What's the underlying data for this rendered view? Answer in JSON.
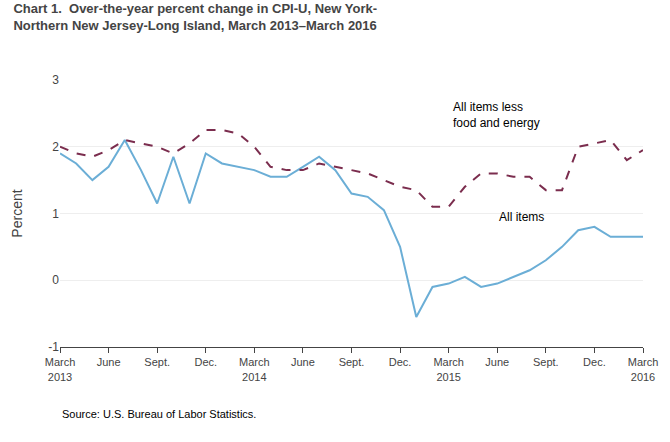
{
  "chart_data": {
    "type": "line",
    "title": "Chart 1.  Over-the-year percent change in CPI-U, New York-\nNorthern New Jersey-Long Island, March 2013–March 2016",
    "y_label": "Percent",
    "source": "Source: U.S. Bureau of Labor Statistics.",
    "annotations": [
      "All items",
      "All items less\nfood and energy"
    ],
    "categories": [
      "March\n2013",
      null,
      null,
      "June",
      null,
      null,
      "Sept.",
      null,
      null,
      "Dec.",
      null,
      null,
      "March\n2014",
      null,
      null,
      "June",
      null,
      null,
      "Sept.",
      null,
      null,
      "Dec.",
      null,
      null,
      "March\n2015",
      null,
      null,
      "June",
      null,
      null,
      "Sept.",
      null,
      null,
      "Dec.",
      null,
      null,
      "March\n2016"
    ],
    "series": [
      {
        "color": "#6baed6",
        "line_style": "solid",
        "values": [
          1.9,
          1.75,
          1.5,
          1.7,
          2.1,
          1.65,
          1.15,
          1.85,
          1.15,
          1.9,
          1.75,
          1.7,
          1.65,
          1.55,
          1.55,
          1.7,
          1.85,
          1.65,
          1.3,
          1.25,
          1.05,
          0.5,
          -0.55,
          -0.1,
          -0.05,
          0.05,
          -0.1,
          -0.05,
          0.05,
          0.15,
          0.3,
          0.5,
          0.75,
          0.8,
          0.65,
          0.65,
          0.65
        ]
      },
      {
        "color": "#7b2d4e",
        "line_style": "dashed",
        "values": [
          2.0,
          1.9,
          1.85,
          1.95,
          2.1,
          2.05,
          2.0,
          1.9,
          2.05,
          2.25,
          2.25,
          2.2,
          2.0,
          1.7,
          1.65,
          1.65,
          1.75,
          1.7,
          1.65,
          1.6,
          1.5,
          1.4,
          1.35,
          1.1,
          1.1,
          1.4,
          1.6,
          1.6,
          1.55,
          1.55,
          1.35,
          1.35,
          2.0,
          2.05,
          2.1,
          1.8,
          1.95
        ]
      }
    ],
    "ylim": [
      -1,
      3
    ],
    "yticks": [
      -1,
      0,
      1,
      2,
      3
    ],
    "grid": true
  }
}
